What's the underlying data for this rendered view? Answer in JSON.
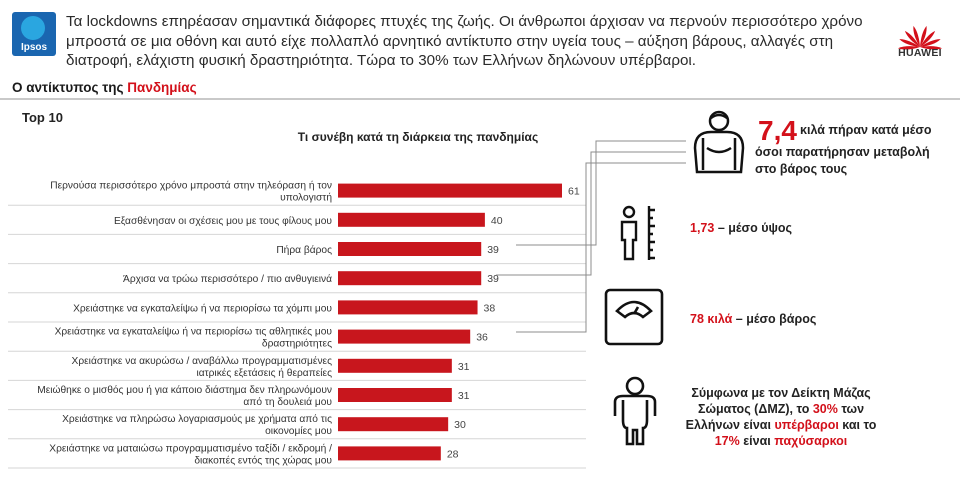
{
  "header": {
    "logo_text": "Ipsos",
    "headline": "Τα lockdowns επηρέασαν σημαντικά διάφορες πτυχές της ζωής. Οι άνθρωποι άρχισαν να περνούν περισσότερο χρόνο μπροστά σε μια οθόνη και αυτό είχε πολλαπλό αρνητικό αντίκτυπο στην υγεία τους – αύξηση βάρους, αλλαγές στη διατροφή, ελάχιστη φυσική δραστηριότητα. Τώρα το 30% των Ελλήνων δηλώνουν υπέρβαροι.",
    "brand": "HUAWEI",
    "brand_color": "#d3101a"
  },
  "section": {
    "title_prefix": "Ο αντίκτυπος της ",
    "title_highlight": "Πανδημίας",
    "sub": "Top 10"
  },
  "chart_data": {
    "type": "bar",
    "orientation": "horizontal",
    "title": "Τι συνέβη κατά τη διάρκεια της πανδημίας",
    "xlim": [
      0,
      61
    ],
    "bar_color": "#c8161d",
    "categories": [
      [
        "Περνούσα περισσότερο χρόνο μπροστά στην τηλεόραση ή τον",
        "υπολογιστή"
      ],
      [
        "Εξασθένησαν οι σχέσεις μου με τους φίλους μου"
      ],
      [
        "Πήρα βάρος"
      ],
      [
        "Άρχισα να τρώω περισσότερο / πιο ανθυγιεινά"
      ],
      [
        "Χρειάστηκε να εγκαταλείψω ή να περιορίσω τα χόμπι μου"
      ],
      [
        "Χρειάστηκε να εγκαταλείψω ή να περιορίσω τις αθλητικές μου",
        "δραστηριότητες"
      ],
      [
        "Χρειάστηκε να ακυρώσω / αναβάλλω προγραμματισμένες",
        "ιατρικές εξετάσεις ή θεραπείες"
      ],
      [
        "Μειώθηκε ο μισθός μου ή για κάποιο διάστημα δεν πληρωνόμουν",
        "από τη δουλειά μου"
      ],
      [
        "Χρειάστηκε να πληρώσω λογαριασμούς με χρήματα από τις",
        "οικονομίες μου"
      ],
      [
        "Χρειάστηκε να ματαιώσω προγραμματισμένο ταξίδι / εκδρομή /",
        "διακοπές εντός της χώρας μου"
      ]
    ],
    "values": [
      61,
      40,
      39,
      39,
      38,
      36,
      31,
      31,
      30,
      28
    ]
  },
  "facts": {
    "kg_value": "7,4",
    "kg_line1": "κιλά πήραν κατά μέσο",
    "kg_line2": "όσοι παρατήρησαν μεταβολή",
    "kg_line3": "στο βάρος τους",
    "height_value": "1,73",
    "height_label": " – μέσο ύψος",
    "weight_value": "78 κιλά",
    "weight_label": " – μέσο βάρος",
    "bmi_1": "Σύμφωνα με τον Δείκτη Μάζας",
    "bmi_2": "Σώματος (ΔΜΖ), το ",
    "bmi_pct1": "30%",
    "bmi_3": " των",
    "bmi_4": "Ελλήνων είναι ",
    "bmi_over": "υπέρβαροι",
    "bmi_5": " και το",
    "bmi_pct2": "17%",
    "bmi_6": " είναι ",
    "bmi_obese": "παχύσαρκοι"
  }
}
